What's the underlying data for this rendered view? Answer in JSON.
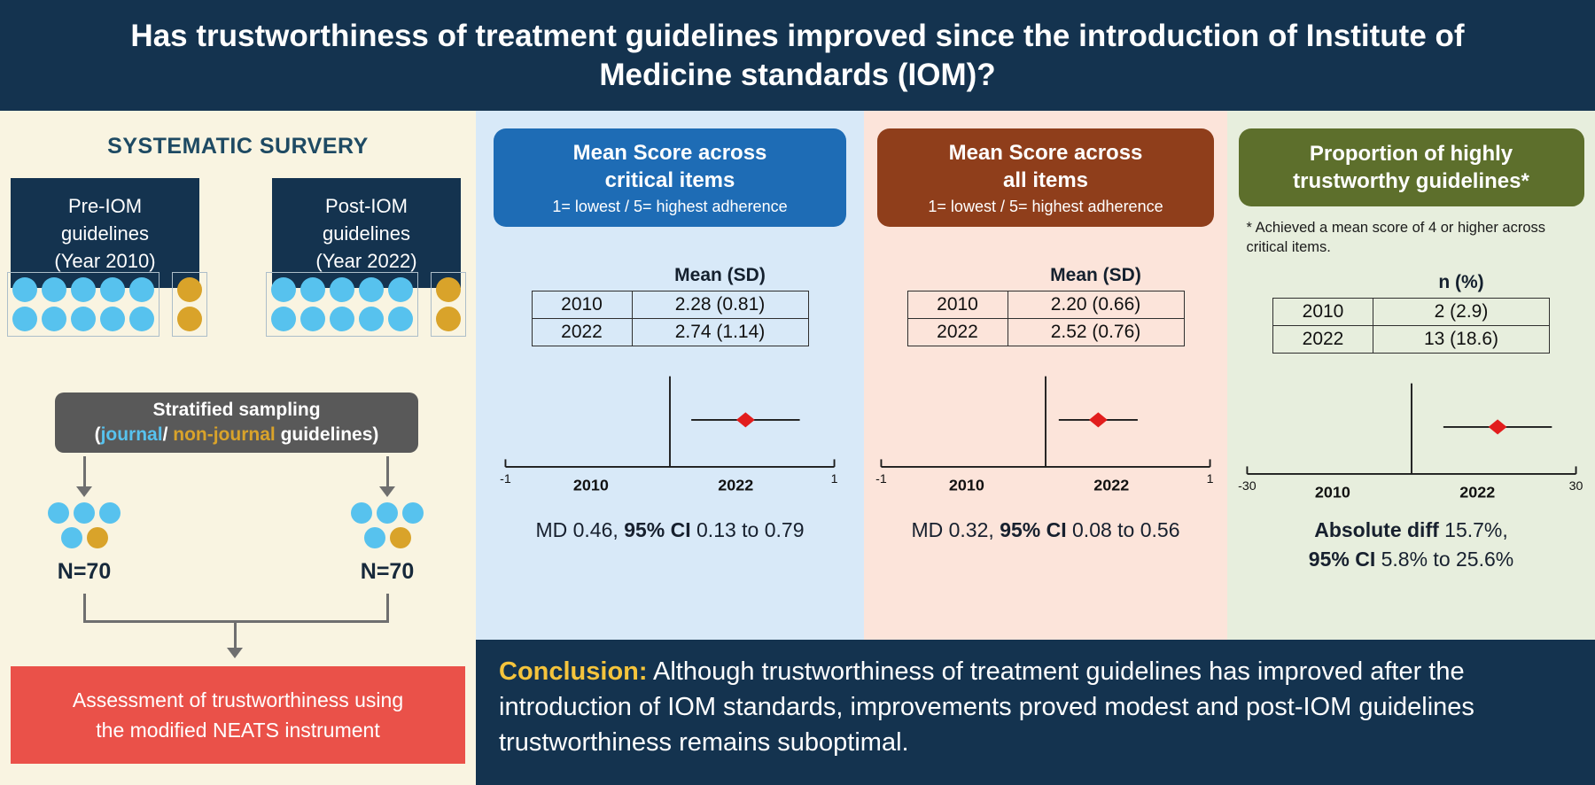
{
  "palette": {
    "navy": "#14334F",
    "cream": "#F9F4E1",
    "blue_col_bg": "#D8E9F8",
    "peach_col_bg": "#FCE4DA",
    "green_col_bg": "#E7EEDD",
    "blue_header": "#1E6CB5",
    "brown_header": "#8F3E1B",
    "olive_header": "#5D6F2C",
    "red_box": "#EA5149",
    "gray_box": "#595959",
    "journal_dot": "#57C2EE",
    "nonjournal_dot": "#D9A32A",
    "diamond": "#E21D1D",
    "gold": "#F5C43C"
  },
  "header": {
    "title_lines": [
      "Has trustworthiness of treatment guidelines improved since the introduction of Institute of",
      "Medicine standards (IOM)?"
    ]
  },
  "left_panel": {
    "heading": "SYSTEMATIC SURVERY",
    "pre_box_lines": [
      "Pre-IOM",
      "guidelines",
      "(Year 2010)"
    ],
    "post_box_lines": [
      "Post-IOM",
      "guidelines",
      "(Year 2022)"
    ],
    "dots": {
      "pre_journal_rows": [
        [
          "j",
          "j",
          "j",
          "j",
          "j"
        ],
        [
          "j",
          "j",
          "j",
          "j",
          "j"
        ]
      ],
      "pre_nonjournal_rows": [
        [
          "n"
        ],
        [
          "n"
        ]
      ],
      "post_journal_rows": [
        [
          "j",
          "j",
          "j",
          "j",
          "j"
        ],
        [
          "j",
          "j",
          "j",
          "j",
          "j"
        ]
      ],
      "post_nonjournal_rows": [
        [
          "n"
        ],
        [
          "n"
        ]
      ],
      "sample_left_rows": [
        [
          "j",
          "j",
          "j"
        ],
        [
          "j",
          "n"
        ]
      ],
      "sample_right_rows": [
        [
          "j",
          "j",
          "j"
        ],
        [
          "j",
          "n"
        ]
      ]
    },
    "stratified": {
      "line1": "Stratified sampling",
      "line2_parts": [
        {
          "text": "(",
          "color": "white"
        },
        {
          "text": "journal",
          "color": "journal"
        },
        {
          "text": "/ ",
          "color": "white"
        },
        {
          "text": "non-journal",
          "color": "nonjournal"
        },
        {
          "text": " guidelines)",
          "color": "white"
        }
      ]
    },
    "n_left": "N=70",
    "n_right": "N=70",
    "assessment_lines": [
      "Assessment of trustworthiness using",
      "the modified NEATS instrument"
    ]
  },
  "results": [
    {
      "title_lines": [
        "Mean Score across",
        "critical items"
      ],
      "subtitle": "1= lowest / 5= highest adherence",
      "table": {
        "header": "Mean (SD)",
        "rows": [
          [
            "2010",
            "2.28 (0.81)"
          ],
          [
            "2022",
            "2.74 (1.14)"
          ]
        ]
      },
      "plot": {
        "type": "forest",
        "min": -1,
        "max": 1,
        "est": 0.46,
        "lo": 0.13,
        "hi": 0.79,
        "min_label": "-1",
        "max_label": "1",
        "year_left": "2010",
        "year_right": "2022"
      },
      "result_parts": [
        {
          "text": "MD 0.46, ",
          "bold": false
        },
        {
          "text": "95% CI",
          "bold": true
        },
        {
          "text": " 0.13 to 0.79",
          "bold": false
        }
      ]
    },
    {
      "title_lines": [
        "Mean Score across",
        "all items"
      ],
      "subtitle": "1= lowest / 5= highest adherence",
      "table": {
        "header": "Mean (SD)",
        "rows": [
          [
            "2010",
            "2.20 (0.66)"
          ],
          [
            "2022",
            "2.52 (0.76)"
          ]
        ]
      },
      "plot": {
        "type": "forest",
        "min": -1,
        "max": 1,
        "est": 0.32,
        "lo": 0.08,
        "hi": 0.56,
        "min_label": "-1",
        "max_label": "1",
        "year_left": "2010",
        "year_right": "2022"
      },
      "result_parts": [
        {
          "text": "MD 0.32, ",
          "bold": false
        },
        {
          "text": "95% CI",
          "bold": true
        },
        {
          "text": " 0.08 to 0.56",
          "bold": false
        }
      ]
    },
    {
      "title_lines": [
        "Proportion of highly",
        "trustworthy guidelines*"
      ],
      "footnote": "* Achieved a mean score of 4 or higher across critical items.",
      "table": {
        "header": "n (%)",
        "rows": [
          [
            "2010",
            "2 (2.9)"
          ],
          [
            "2022",
            "13 (18.6)"
          ]
        ]
      },
      "plot": {
        "type": "forest",
        "min": -30,
        "max": 30,
        "est": 15.7,
        "lo": 5.8,
        "hi": 25.6,
        "min_label": "-30",
        "max_label": "30",
        "year_left": "2010",
        "year_right": "2022"
      },
      "result_line1_parts": [
        {
          "text": "Absolute diff ",
          "bold": true
        },
        {
          "text": "15.7%,",
          "bold": false
        }
      ],
      "result_line2_parts": [
        {
          "text": "95% CI",
          "bold": true
        },
        {
          "text": " 5.8% to 25.6%",
          "bold": false
        }
      ]
    }
  ],
  "conclusion": {
    "label": "Conclusion:",
    "text": " Although trustworthiness of treatment guidelines has improved after the introduction of IOM standards, improvements proved modest and post-IOM guidelines trustworthiness remains suboptimal."
  }
}
